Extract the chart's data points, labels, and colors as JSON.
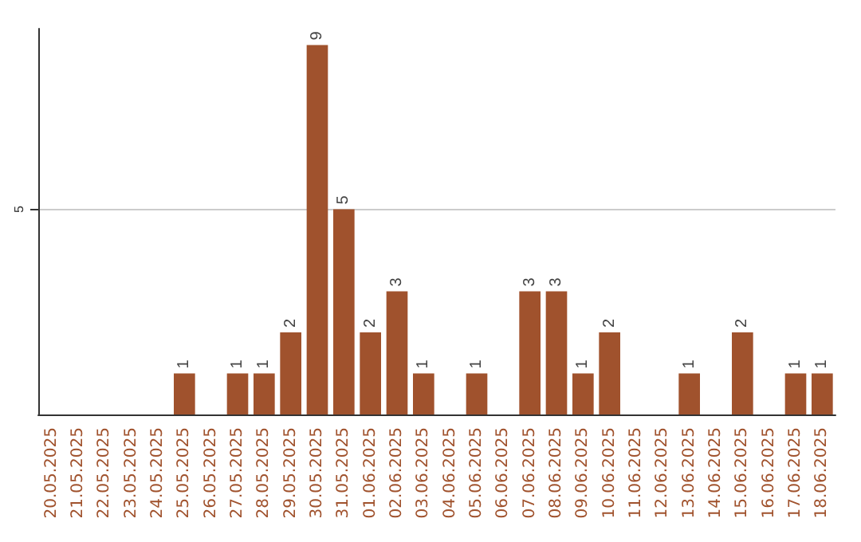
{
  "chart_data": {
    "type": "bar",
    "categories": [
      "20.05.2025",
      "21.05.2025",
      "22.05.2025",
      "23.05.2025",
      "24.05.2025",
      "25.05.2025",
      "26.05.2025",
      "27.05.2025",
      "28.05.2025",
      "29.05.2025",
      "30.05.2025",
      "31.05.2025",
      "01.06.2025",
      "02.06.2025",
      "03.06.2025",
      "04.06.2025",
      "05.06.2025",
      "06.06.2025",
      "07.06.2025",
      "08.06.2025",
      "09.06.2025",
      "10.06.2025",
      "11.06.2025",
      "12.06.2025",
      "13.06.2025",
      "14.06.2025",
      "15.06.2025",
      "16.06.2025",
      "17.06.2025",
      "18.06.2025"
    ],
    "values": [
      0,
      0,
      0,
      0,
      0,
      1,
      0,
      1,
      1,
      2,
      9,
      5,
      2,
      3,
      1,
      0,
      1,
      0,
      3,
      3,
      1,
      2,
      0,
      0,
      1,
      0,
      2,
      0,
      1,
      1
    ],
    "value_labels": [
      null,
      null,
      null,
      null,
      null,
      "1",
      null,
      "1",
      "1",
      "2",
      "9",
      "5",
      "2",
      "3",
      "1",
      null,
      "1",
      null,
      "3",
      "3",
      "1",
      "2",
      null,
      null,
      "1",
      null,
      "2",
      null,
      "1",
      "1"
    ],
    "color": "#a0522d",
    "ylim": [
      0,
      9.4
    ],
    "yticks": [
      5
    ],
    "grid": "y"
  }
}
